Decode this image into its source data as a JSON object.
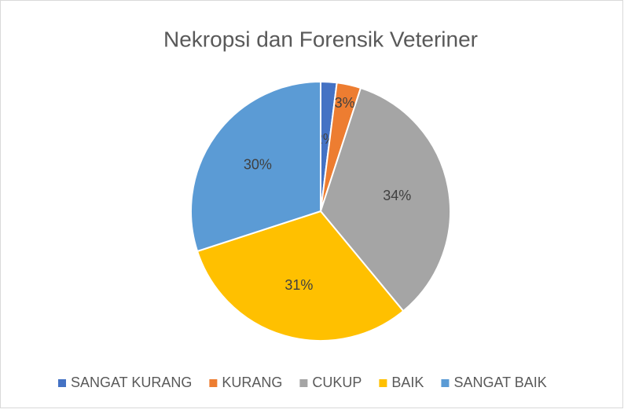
{
  "chart_data": {
    "type": "pie",
    "title": "Nekropsi dan Forensik Veteriner",
    "categories": [
      "SANGAT KURANG",
      "KURANG",
      "CUKUP",
      "BAIK",
      "SANGAT BAIK"
    ],
    "values": [
      2,
      3,
      34,
      31,
      30
    ],
    "value_labels": [
      "2%",
      "3%",
      "34%",
      "31%",
      "30%"
    ],
    "colors": [
      "#4472c4",
      "#ed7d31",
      "#a5a5a5",
      "#ffc000",
      "#5b9bd5"
    ],
    "legend": "bottom"
  }
}
